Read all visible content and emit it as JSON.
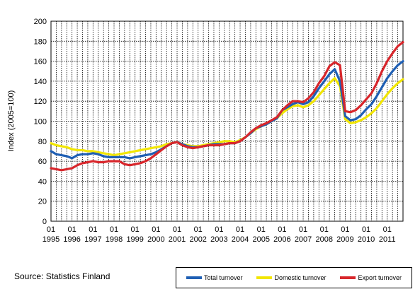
{
  "chart_data": {
    "type": "line",
    "ylabel": "Index (2005=100)",
    "ylim": [
      0,
      200
    ],
    "yticks": [
      0,
      20,
      40,
      60,
      80,
      100,
      120,
      140,
      160,
      180,
      200
    ],
    "xlim": [
      1995.0,
      2011.75
    ],
    "xticks": [
      {
        "q": "01",
        "year": "1995"
      },
      {
        "q": "01",
        "year": "1996"
      },
      {
        "q": "01",
        "year": "1997"
      },
      {
        "q": "01",
        "year": "1998"
      },
      {
        "q": "01",
        "year": "1999"
      },
      {
        "q": "01",
        "year": "2000"
      },
      {
        "q": "01",
        "year": "2001"
      },
      {
        "q": "01",
        "year": "2002"
      },
      {
        "q": "01",
        "year": "2003"
      },
      {
        "q": "01",
        "year": "2004"
      },
      {
        "q": "01",
        "year": "2005"
      },
      {
        "q": "01",
        "year": "2006"
      },
      {
        "q": "01",
        "year": "2007"
      },
      {
        "q": "01",
        "year": "2008"
      },
      {
        "q": "01",
        "year": "2009"
      },
      {
        "q": "01",
        "year": "2010"
      },
      {
        "q": "01",
        "year": "2011"
      }
    ],
    "grid": "vertical dotted at each quarter; horizontal dotted at each y tick",
    "legend_position": "bottom-right",
    "series": [
      {
        "name": "Total turnover",
        "color": "#1f5fb4",
        "points": [
          [
            1995.0,
            70
          ],
          [
            1995.25,
            67
          ],
          [
            1995.5,
            66
          ],
          [
            1995.75,
            65
          ],
          [
            1996.0,
            63
          ],
          [
            1996.25,
            66
          ],
          [
            1996.5,
            67
          ],
          [
            1996.75,
            67
          ],
          [
            1997.0,
            68
          ],
          [
            1997.25,
            67
          ],
          [
            1997.5,
            65
          ],
          [
            1997.75,
            64
          ],
          [
            1998.0,
            64
          ],
          [
            1998.25,
            64
          ],
          [
            1998.5,
            64
          ],
          [
            1998.75,
            63
          ],
          [
            1999.0,
            64
          ],
          [
            1999.25,
            65
          ],
          [
            1999.5,
            66
          ],
          [
            1999.75,
            67
          ],
          [
            2000.0,
            69
          ],
          [
            2000.25,
            72
          ],
          [
            2000.5,
            75
          ],
          [
            2000.75,
            78
          ],
          [
            2001.0,
            79
          ],
          [
            2001.25,
            77
          ],
          [
            2001.5,
            75
          ],
          [
            2001.75,
            74
          ],
          [
            2002.0,
            74
          ],
          [
            2002.25,
            75
          ],
          [
            2002.5,
            76
          ],
          [
            2002.75,
            77
          ],
          [
            2003.0,
            77
          ],
          [
            2003.25,
            77
          ],
          [
            2003.5,
            78
          ],
          [
            2003.75,
            78
          ],
          [
            2004.0,
            80
          ],
          [
            2004.25,
            84
          ],
          [
            2004.5,
            88
          ],
          [
            2004.75,
            93
          ],
          [
            2005.0,
            95
          ],
          [
            2005.25,
            97
          ],
          [
            2005.5,
            100
          ],
          [
            2005.75,
            103
          ],
          [
            2006.0,
            111
          ],
          [
            2006.25,
            114
          ],
          [
            2006.5,
            117
          ],
          [
            2006.75,
            119
          ],
          [
            2007.0,
            117
          ],
          [
            2007.25,
            119
          ],
          [
            2007.5,
            125
          ],
          [
            2007.75,
            133
          ],
          [
            2008.0,
            140
          ],
          [
            2008.25,
            147
          ],
          [
            2008.5,
            152
          ],
          [
            2008.75,
            140
          ],
          [
            2009.0,
            105
          ],
          [
            2009.25,
            101
          ],
          [
            2009.5,
            102
          ],
          [
            2009.75,
            106
          ],
          [
            2010.0,
            112
          ],
          [
            2010.25,
            117
          ],
          [
            2010.5,
            125
          ],
          [
            2010.75,
            134
          ],
          [
            2011.0,
            143
          ],
          [
            2011.25,
            150
          ],
          [
            2011.5,
            156
          ],
          [
            2011.75,
            160
          ]
        ]
      },
      {
        "name": "Domestic turnover",
        "color": "#f2e600",
        "points": [
          [
            1995.0,
            78
          ],
          [
            1995.25,
            76
          ],
          [
            1995.5,
            75
          ],
          [
            1995.75,
            74
          ],
          [
            1996.0,
            72
          ],
          [
            1996.25,
            71
          ],
          [
            1996.5,
            71
          ],
          [
            1996.75,
            70
          ],
          [
            1997.0,
            70
          ],
          [
            1997.25,
            69
          ],
          [
            1997.5,
            68
          ],
          [
            1997.75,
            67
          ],
          [
            1998.0,
            66
          ],
          [
            1998.25,
            67
          ],
          [
            1998.5,
            68
          ],
          [
            1998.75,
            69
          ],
          [
            1999.0,
            70
          ],
          [
            1999.25,
            71
          ],
          [
            1999.5,
            72
          ],
          [
            1999.75,
            73
          ],
          [
            2000.0,
            74
          ],
          [
            2000.25,
            75
          ],
          [
            2000.5,
            77
          ],
          [
            2000.75,
            78
          ],
          [
            2001.0,
            79
          ],
          [
            2001.25,
            77
          ],
          [
            2001.5,
            76
          ],
          [
            2001.75,
            75
          ],
          [
            2002.0,
            75
          ],
          [
            2002.25,
            76
          ],
          [
            2002.5,
            77
          ],
          [
            2002.75,
            78
          ],
          [
            2003.0,
            79
          ],
          [
            2003.25,
            80
          ],
          [
            2003.5,
            80
          ],
          [
            2003.75,
            79
          ],
          [
            2004.0,
            81
          ],
          [
            2004.25,
            84
          ],
          [
            2004.5,
            88
          ],
          [
            2004.75,
            92
          ],
          [
            2005.0,
            95
          ],
          [
            2005.25,
            97
          ],
          [
            2005.5,
            100
          ],
          [
            2005.75,
            103
          ],
          [
            2006.0,
            108
          ],
          [
            2006.25,
            112
          ],
          [
            2006.5,
            115
          ],
          [
            2006.75,
            116
          ],
          [
            2007.0,
            114
          ],
          [
            2007.25,
            116
          ],
          [
            2007.5,
            120
          ],
          [
            2007.75,
            126
          ],
          [
            2008.0,
            132
          ],
          [
            2008.25,
            138
          ],
          [
            2008.5,
            143
          ],
          [
            2008.75,
            135
          ],
          [
            2009.0,
            102
          ],
          [
            2009.25,
            98
          ],
          [
            2009.5,
            99
          ],
          [
            2009.75,
            101
          ],
          [
            2010.0,
            104
          ],
          [
            2010.25,
            108
          ],
          [
            2010.5,
            113
          ],
          [
            2010.75,
            120
          ],
          [
            2011.0,
            127
          ],
          [
            2011.25,
            133
          ],
          [
            2011.5,
            138
          ],
          [
            2011.75,
            142
          ]
        ]
      },
      {
        "name": "Export turnover",
        "color": "#d8262b",
        "points": [
          [
            1995.0,
            53
          ],
          [
            1995.25,
            52
          ],
          [
            1995.5,
            51
          ],
          [
            1995.75,
            52
          ],
          [
            1996.0,
            53
          ],
          [
            1996.25,
            56
          ],
          [
            1996.5,
            58
          ],
          [
            1996.75,
            59
          ],
          [
            1997.0,
            60
          ],
          [
            1997.25,
            59
          ],
          [
            1997.5,
            59
          ],
          [
            1997.75,
            60
          ],
          [
            1998.0,
            60
          ],
          [
            1998.25,
            60
          ],
          [
            1998.5,
            57
          ],
          [
            1998.75,
            56
          ],
          [
            1999.0,
            57
          ],
          [
            1999.25,
            58
          ],
          [
            1999.5,
            60
          ],
          [
            1999.75,
            63
          ],
          [
            2000.0,
            67
          ],
          [
            2000.25,
            71
          ],
          [
            2000.5,
            75
          ],
          [
            2000.75,
            78
          ],
          [
            2001.0,
            79
          ],
          [
            2001.25,
            76
          ],
          [
            2001.5,
            74
          ],
          [
            2001.75,
            73
          ],
          [
            2002.0,
            74
          ],
          [
            2002.25,
            75
          ],
          [
            2002.5,
            76
          ],
          [
            2002.75,
            76
          ],
          [
            2003.0,
            76
          ],
          [
            2003.25,
            77
          ],
          [
            2003.5,
            78
          ],
          [
            2003.75,
            78
          ],
          [
            2004.0,
            80
          ],
          [
            2004.25,
            84
          ],
          [
            2004.5,
            89
          ],
          [
            2004.75,
            93
          ],
          [
            2005.0,
            96
          ],
          [
            2005.25,
            98
          ],
          [
            2005.5,
            101
          ],
          [
            2005.75,
            104
          ],
          [
            2006.0,
            111
          ],
          [
            2006.25,
            116
          ],
          [
            2006.5,
            120
          ],
          [
            2006.75,
            120
          ],
          [
            2007.0,
            119
          ],
          [
            2007.25,
            123
          ],
          [
            2007.5,
            129
          ],
          [
            2007.75,
            138
          ],
          [
            2008.0,
            145
          ],
          [
            2008.25,
            155
          ],
          [
            2008.5,
            159
          ],
          [
            2008.75,
            156
          ],
          [
            2009.0,
            110
          ],
          [
            2009.25,
            109
          ],
          [
            2009.5,
            111
          ],
          [
            2009.75,
            116
          ],
          [
            2010.0,
            122
          ],
          [
            2010.25,
            128
          ],
          [
            2010.5,
            138
          ],
          [
            2010.75,
            150
          ],
          [
            2011.0,
            160
          ],
          [
            2011.25,
            168
          ],
          [
            2011.5,
            175
          ],
          [
            2011.75,
            179
          ]
        ]
      }
    ]
  },
  "footer": {
    "source": "Source: Statistics Finland"
  }
}
